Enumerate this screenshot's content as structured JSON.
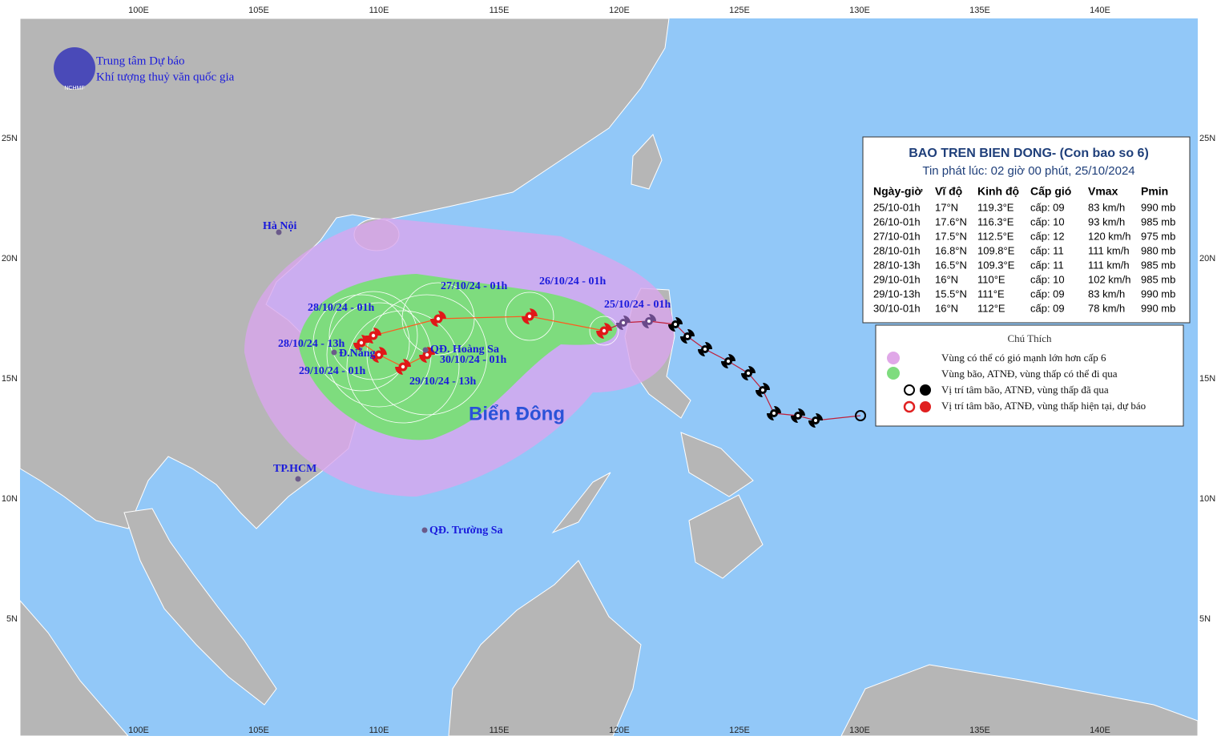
{
  "header": {
    "logo": "NCHMF",
    "org_line1": "Trung tâm Dự báo",
    "org_line2": "Khí tượng thuỷ văn quốc gia"
  },
  "map": {
    "lon_labels": [
      "100E",
      "105E",
      "110E",
      "115E",
      "120E",
      "125E",
      "130E",
      "135E",
      "140E"
    ],
    "lat_labels": [
      "25N",
      "20N",
      "15N",
      "10N",
      "5N"
    ],
    "places": [
      "Hà Nội",
      "Đ.Nẵng",
      "QĐ. Hoàng Sa",
      "TP.HCM",
      "QĐ. Trường Sa"
    ],
    "sea_label": "Biển Đông",
    "track_labels": [
      "25/10/24 - 01h",
      "26/10/24 - 01h",
      "27/10/24 - 01h",
      "28/10/24 - 01h",
      "28/10/24 - 13h",
      "29/10/24 - 01h",
      "29/10/24 - 13h",
      "30/10/24 - 01h"
    ]
  },
  "bulletin": {
    "title": "BAO TREN BIEN DONG- (Con bao so 6)",
    "issued": "Tin phát lúc: 02 giờ 00 phút, 25/10/2024",
    "columns": [
      "Ngày-giờ",
      "Vĩ độ",
      "Kinh độ",
      "Cấp gió",
      "Vmax",
      "Pmin"
    ],
    "rows": [
      [
        "25/10-01h",
        "17°N",
        "119.3°E",
        "cấp: 09",
        "83 km/h",
        "990 mb"
      ],
      [
        "26/10-01h",
        "17.6°N",
        "116.3°E",
        "cấp: 10",
        "93 km/h",
        "985 mb"
      ],
      [
        "27/10-01h",
        "17.5°N",
        "112.5°E",
        "cấp: 12",
        "120 km/h",
        "975 mb"
      ],
      [
        "28/10-01h",
        "16.8°N",
        "109.8°E",
        "cấp: 11",
        "111 km/h",
        "980 mb"
      ],
      [
        "28/10-13h",
        "16.5°N",
        "109.3°E",
        "cấp: 11",
        "111 km/h",
        "985 mb"
      ],
      [
        "29/10-01h",
        "16°N",
        "110°E",
        "cấp: 10",
        "102 km/h",
        "985 mb"
      ],
      [
        "29/10-13h",
        "15.5°N",
        "111°E",
        "cấp: 09",
        "83 km/h",
        "990 mb"
      ],
      [
        "30/10-01h",
        "16°N",
        "112°E",
        "cấp: 09",
        "78 km/h",
        "990 mb"
      ]
    ]
  },
  "legend": {
    "title": "Chú Thích",
    "items": [
      "Vùng có thể có gió mạnh lớn hơn cấp 6",
      "Vùng bão, ATNĐ, vùng thấp có thể đi qua",
      "Vị trí tâm bão, ATNĐ, vùng thấp đã qua",
      "Vị trí tâm bão, ATNĐ, vùng thấp hiện tại, dự báo"
    ]
  }
}
